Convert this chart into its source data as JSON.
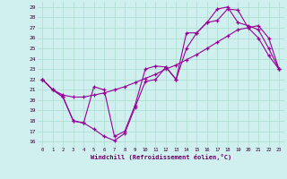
{
  "xlabel": "Windchill (Refroidissement éolien,°C)",
  "background_color": "#cff0ee",
  "grid_color": "#aaddcc",
  "line_color": "#990099",
  "xlim": [
    -0.5,
    23.5
  ],
  "ylim": [
    15.5,
    29.5
  ],
  "line1_x": [
    0,
    1,
    2,
    3,
    4,
    5,
    6,
    7,
    8,
    9,
    10,
    11,
    12,
    13,
    14,
    15,
    16,
    17,
    18,
    19,
    20,
    21,
    22,
    23
  ],
  "line1_y": [
    22,
    21,
    20.3,
    18.0,
    17.8,
    17.2,
    16.5,
    16.1,
    16.8,
    19.3,
    21.8,
    22.0,
    23.2,
    22.0,
    25.0,
    26.5,
    27.5,
    27.7,
    28.8,
    28.7,
    27.0,
    26.0,
    24.3,
    23.0
  ],
  "line2_x": [
    0,
    1,
    2,
    3,
    4,
    5,
    6,
    7,
    8,
    9,
    10,
    11,
    12,
    13,
    14,
    15,
    16,
    17,
    18,
    19,
    20,
    21,
    22,
    23
  ],
  "line2_y": [
    22,
    21.0,
    20.5,
    20.3,
    20.3,
    20.5,
    20.7,
    21.0,
    21.3,
    21.7,
    22.1,
    22.5,
    23.0,
    23.4,
    23.9,
    24.4,
    25.0,
    25.6,
    26.2,
    26.8,
    27.0,
    27.2,
    26.0,
    23.0
  ],
  "line3_x": [
    0,
    1,
    2,
    3,
    4,
    5,
    6,
    7,
    8,
    9,
    10,
    11,
    12,
    13,
    14,
    15,
    16,
    17,
    18,
    19,
    20,
    21,
    22,
    23
  ],
  "line3_y": [
    22,
    21.0,
    20.3,
    18.0,
    17.8,
    21.3,
    21.0,
    16.5,
    17.0,
    19.5,
    23.0,
    23.3,
    23.2,
    22.0,
    26.5,
    26.5,
    27.5,
    28.8,
    29.0,
    27.5,
    27.2,
    26.8,
    25.0,
    23.0
  ]
}
